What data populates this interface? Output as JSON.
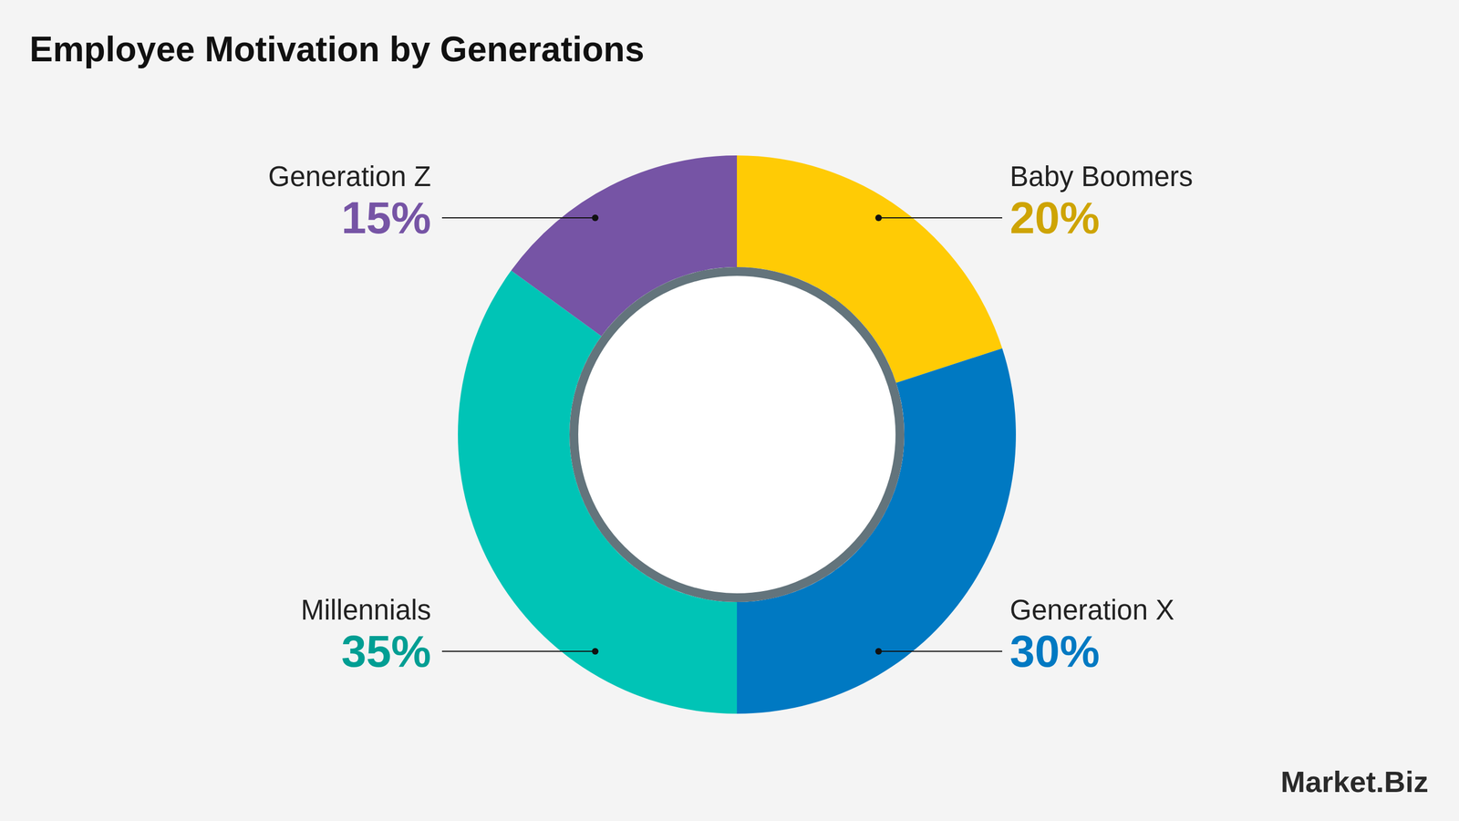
{
  "chart_data": {
    "type": "pie",
    "title": "Employee Motivation by Generations",
    "categories": [
      "Baby Boomers",
      "Generation X",
      "Millennials",
      "Generation Z"
    ],
    "values": [
      20,
      30,
      35,
      15
    ],
    "value_labels": [
      "20%",
      "30%",
      "35%",
      "15%"
    ],
    "colors": [
      "#ffcb05",
      "#0079c2",
      "#00c4b6",
      "#7654a5"
    ],
    "data_labels": true,
    "annotations": [
      "Market.Biz"
    ]
  }
}
